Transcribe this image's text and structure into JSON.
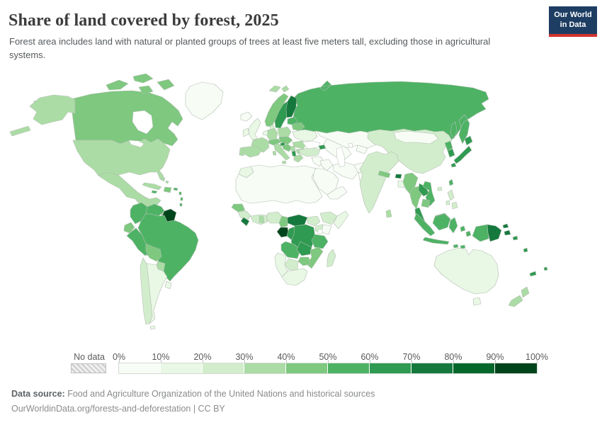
{
  "header": {
    "title": "Share of land covered by forest, 2025",
    "subtitle": "Forest area includes land with natural or planted groups of trees at least five meters tall, excluding those in agricultural systems.",
    "logo": {
      "line1": "Our World",
      "line2": "in Data",
      "bg": "#1d3d63",
      "stripe": "#d0342c"
    }
  },
  "legend": {
    "no_data_label": "No data",
    "ticks": [
      "0%",
      "10%",
      "20%",
      "30%",
      "40%",
      "50%",
      "60%",
      "70%",
      "80%",
      "90%",
      "100%"
    ],
    "colors": [
      "#f7fcf5",
      "#e9f7e5",
      "#d2edcc",
      "#abdca5",
      "#7ec87f",
      "#4eb265",
      "#2f9a51",
      "#15793e",
      "#03672c",
      "#00441b"
    ]
  },
  "map": {
    "ocean": "#ffffff",
    "border_color": "#b3bfb3"
  },
  "footer": {
    "source_label": "Data source:",
    "source_text": " Food and Agriculture Organization of the United Nations and historical sources",
    "link_line": "OurWorldinData.org/forests-and-deforestation | CC BY"
  },
  "chart_data": {
    "type": "choropleth-map",
    "title": "Share of land covered by forest, 2025",
    "unit": "%",
    "bins": [
      0,
      10,
      20,
      30,
      40,
      50,
      60,
      70,
      80,
      90,
      100
    ],
    "legend_position": "bottom",
    "countries": [
      {
        "id": "greenland",
        "name": "Greenland",
        "value": 0
      },
      {
        "id": "russia",
        "name": "Russia",
        "value": 50
      },
      {
        "id": "canada",
        "name": "Canada",
        "value": 40
      },
      {
        "id": "canada-islands",
        "name": "Canadian Arctic Islands",
        "value": 40
      },
      {
        "id": "alaska",
        "name": "United States (Alaska)",
        "value": 34
      },
      {
        "id": "usa",
        "name": "United States",
        "value": 34
      },
      {
        "id": "mexico",
        "name": "Mexico",
        "value": 34
      },
      {
        "id": "central-america",
        "name": "Central America (Guatemala-Nicaragua)",
        "value": 45
      },
      {
        "id": "costa-rica-panama",
        "name": "Costa Rica & Panama",
        "value": 62
      },
      {
        "id": "cuba",
        "name": "Cuba",
        "value": 31
      },
      {
        "id": "hispaniola",
        "name": "Hispaniola",
        "value": 44
      },
      {
        "id": "caribbean-islands",
        "name": "Caribbean islands",
        "value": 55
      },
      {
        "id": "bahamas",
        "name": "Bahamas",
        "value": 32
      },
      {
        "id": "colombia",
        "name": "Colombia",
        "value": 53
      },
      {
        "id": "venezuela",
        "name": "Venezuela",
        "value": 56
      },
      {
        "id": "guyanas",
        "name": "Guyana, Suriname & French Guiana",
        "value": 94
      },
      {
        "id": "brazil",
        "name": "Brazil",
        "value": 59
      },
      {
        "id": "ecuador",
        "name": "Ecuador",
        "value": 46
      },
      {
        "id": "peru",
        "name": "Peru",
        "value": 57
      },
      {
        "id": "bolivia",
        "name": "Bolivia",
        "value": 46
      },
      {
        "id": "paraguay",
        "name": "Paraguay",
        "value": 39
      },
      {
        "id": "uruguay",
        "name": "Uruguay",
        "value": 12
      },
      {
        "id": "argentina",
        "name": "Argentina",
        "value": 10
      },
      {
        "id": "chile",
        "name": "Chile",
        "value": 24
      },
      {
        "id": "iceland",
        "name": "Iceland",
        "value": 1
      },
      {
        "id": "svalbard",
        "name": "Svalbard",
        "value": 30
      },
      {
        "id": "norway",
        "name": "Norway",
        "value": 40
      },
      {
        "id": "sweden",
        "name": "Sweden",
        "value": 69
      },
      {
        "id": "finland",
        "name": "Finland",
        "value": 74
      },
      {
        "id": "denmark",
        "name": "Denmark",
        "value": 22
      },
      {
        "id": "uk",
        "name": "United Kingdom",
        "value": 13
      },
      {
        "id": "ireland",
        "name": "Ireland",
        "value": 12
      },
      {
        "id": "france",
        "name": "France",
        "value": 32
      },
      {
        "id": "spain",
        "name": "Spain",
        "value": 37
      },
      {
        "id": "portugal",
        "name": "Portugal",
        "value": 35
      },
      {
        "id": "germany",
        "name": "Germany",
        "value": 33
      },
      {
        "id": "benelux",
        "name": "Belgium & Netherlands",
        "value": 11
      },
      {
        "id": "poland",
        "name": "Poland",
        "value": 31
      },
      {
        "id": "central-europe",
        "name": "Czechia, Slovakia & Hungary",
        "value": 40
      },
      {
        "id": "austria-switzerland",
        "name": "Austria & Switzerland",
        "value": 44
      },
      {
        "id": "italy",
        "name": "Italy",
        "value": 32
      },
      {
        "id": "croatia-bosnia",
        "name": "Croatia & Bosnia",
        "value": 45
      },
      {
        "id": "slovenia",
        "name": "Slovenia",
        "value": 62
      },
      {
        "id": "serbia",
        "name": "Serbia",
        "value": 31
      },
      {
        "id": "montenegro-albania",
        "name": "Montenegro & Albania",
        "value": 62
      },
      {
        "id": "greece",
        "name": "Greece",
        "value": 30
      },
      {
        "id": "bulgaria",
        "name": "Bulgaria",
        "value": 36
      },
      {
        "id": "romania",
        "name": "Romania",
        "value": 30
      },
      {
        "id": "ukraine",
        "name": "Ukraine",
        "value": 17
      },
      {
        "id": "belarus",
        "name": "Belarus",
        "value": 43
      },
      {
        "id": "baltics",
        "name": "Estonia & Latvia",
        "value": 53
      },
      {
        "id": "turkey",
        "name": "Turkey",
        "value": 29
      },
      {
        "id": "georgia",
        "name": "Georgia",
        "value": 65
      },
      {
        "id": "azerbaijan",
        "name": "Azerbaijan & Armenia",
        "value": 35
      },
      {
        "id": "levant",
        "name": "Syria & Levant",
        "value": 2
      },
      {
        "id": "iraq",
        "name": "Iraq",
        "value": 2
      },
      {
        "id": "saudi",
        "name": "Saudi Arabia",
        "value": 1
      },
      {
        "id": "yemen-oman",
        "name": "Yemen & Oman",
        "value": 1
      },
      {
        "id": "iran",
        "name": "Iran",
        "value": 7
      },
      {
        "id": "afghanistan",
        "name": "Afghanistan",
        "value": 2
      },
      {
        "id": "pakistan",
        "name": "Pakistan",
        "value": 5
      },
      {
        "id": "kazakhstan",
        "name": "Kazakhstan",
        "value": 1
      },
      {
        "id": "central-asia",
        "name": "Central Asia",
        "value": 4
      },
      {
        "id": "morocco",
        "name": "Morocco",
        "value": 13
      },
      {
        "id": "sahara-belt",
        "name": "North Africa & Sahel",
        "value": 2
      },
      {
        "id": "senegal",
        "name": "Senegal",
        "value": 42
      },
      {
        "id": "guinea-group",
        "name": "Guinea region",
        "value": 26
      },
      {
        "id": "liberia",
        "name": "Liberia & Sierra Leone",
        "value": 75
      },
      {
        "id": "ivory-coast-benin",
        "name": "Cote d'Ivoire-Benin coast",
        "value": 22
      },
      {
        "id": "ghana",
        "name": "Ghana",
        "value": 35
      },
      {
        "id": "nigeria",
        "name": "Nigeria",
        "value": 24
      },
      {
        "id": "cameroon",
        "name": "Cameroon",
        "value": 42
      },
      {
        "id": "car",
        "name": "Central African Republic",
        "value": 72
      },
      {
        "id": "south-sudan",
        "name": "South Sudan",
        "value": 23
      },
      {
        "id": "ethiopia",
        "name": "Ethiopia",
        "value": 22
      },
      {
        "id": "somalia",
        "name": "Somalia",
        "value": 12
      },
      {
        "id": "kenya",
        "name": "Kenya",
        "value": 8
      },
      {
        "id": "uganda",
        "name": "Uganda",
        "value": 24
      },
      {
        "id": "gabon",
        "name": "Gabon & Equatorial Guinea",
        "value": 91
      },
      {
        "id": "congo",
        "name": "Congo",
        "value": 65
      },
      {
        "id": "drc",
        "name": "Democratic Republic of Congo",
        "value": 60
      },
      {
        "id": "tanzania",
        "name": "Tanzania",
        "value": 51
      },
      {
        "id": "angola",
        "name": "Angola",
        "value": 52
      },
      {
        "id": "zambia",
        "name": "Zambia",
        "value": 60
      },
      {
        "id": "mozambique",
        "name": "Mozambique",
        "value": 46
      },
      {
        "id": "zimbabwe",
        "name": "Zimbabwe",
        "value": 44
      },
      {
        "id": "botswana",
        "name": "Botswana",
        "value": 25
      },
      {
        "id": "namibia",
        "name": "Namibia",
        "value": 11
      },
      {
        "id": "south-africa",
        "name": "South Africa",
        "value": 14
      },
      {
        "id": "madagascar",
        "name": "Madagascar",
        "value": 21
      },
      {
        "id": "china",
        "name": "China",
        "value": 24
      },
      {
        "id": "mongolia",
        "name": "Mongolia",
        "value": 9
      },
      {
        "id": "north-korea",
        "name": "North Korea",
        "value": 54
      },
      {
        "id": "south-korea",
        "name": "South Korea",
        "value": 64
      },
      {
        "id": "japan",
        "name": "Japan",
        "value": 68
      },
      {
        "id": "taiwan",
        "name": "Taiwan",
        "value": 58
      },
      {
        "id": "india",
        "name": "India",
        "value": 24
      },
      {
        "id": "nepal",
        "name": "Nepal",
        "value": 45
      },
      {
        "id": "bhutan",
        "name": "Bhutan",
        "value": 72
      },
      {
        "id": "bangladesh",
        "name": "Bangladesh",
        "value": 14
      },
      {
        "id": "sri-lanka",
        "name": "Sri Lanka",
        "value": 33
      },
      {
        "id": "myanmar",
        "name": "Myanmar",
        "value": 43
      },
      {
        "id": "thailand",
        "name": "Thailand",
        "value": 41
      },
      {
        "id": "laos",
        "name": "Laos",
        "value": 68
      },
      {
        "id": "vietnam",
        "name": "Vietnam",
        "value": 51
      },
      {
        "id": "cambodia",
        "name": "Cambodia",
        "value": 40
      },
      {
        "id": "malaysia",
        "name": "Malaysia",
        "value": 62
      },
      {
        "id": "indonesia",
        "name": "Indonesia",
        "value": 52
      },
      {
        "id": "philippines",
        "name": "Philippines",
        "value": 24
      },
      {
        "id": "png",
        "name": "Papua New Guinea",
        "value": 79
      },
      {
        "id": "pacific-islands",
        "name": "Pacific islands",
        "value": 62
      },
      {
        "id": "australia",
        "name": "Australia",
        "value": 17
      },
      {
        "id": "new-zealand",
        "name": "New Zealand",
        "value": 38
      }
    ]
  }
}
